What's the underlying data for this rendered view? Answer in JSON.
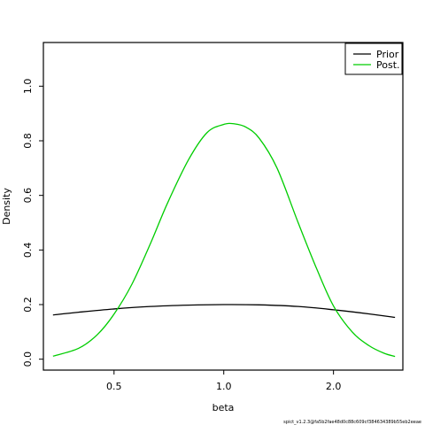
{
  "chart_data": {
    "type": "line",
    "xlabel": "beta",
    "ylabel": "Density",
    "x_scale": "log",
    "xlim": [
      0.32,
      3.1
    ],
    "ylim": [
      -0.04,
      1.16
    ],
    "x_ticks": [
      0.5,
      1.0,
      2.0
    ],
    "x_tick_labels": [
      "0.5",
      "1.0",
      "2.0"
    ],
    "y_ticks": [
      0.0,
      0.2,
      0.4,
      0.6,
      0.8,
      1.0
    ],
    "y_tick_labels": [
      "0.0",
      "0.2",
      "0.4",
      "0.6",
      "0.8",
      "1.0"
    ],
    "grid": false,
    "legend_position": "top-right",
    "series": [
      {
        "name": "Prior",
        "color": "#000000",
        "x": [
          0.34,
          0.4,
          0.5,
          0.63,
          0.8,
          1.0,
          1.25,
          1.6,
          2.0,
          2.5,
          2.95
        ],
        "y": [
          0.162,
          0.172,
          0.184,
          0.193,
          0.198,
          0.2,
          0.199,
          0.193,
          0.181,
          0.166,
          0.153
        ]
      },
      {
        "name": "Post.",
        "color": "#00cd00",
        "x": [
          0.34,
          0.4,
          0.45,
          0.5,
          0.56,
          0.63,
          0.7,
          0.8,
          0.9,
          1.0,
          1.07,
          1.15,
          1.25,
          1.4,
          1.6,
          1.8,
          2.0,
          2.25,
          2.5,
          2.75,
          2.95
        ],
        "y": [
          0.011,
          0.04,
          0.09,
          0.165,
          0.275,
          0.425,
          0.57,
          0.73,
          0.83,
          0.86,
          0.862,
          0.85,
          0.81,
          0.7,
          0.5,
          0.33,
          0.195,
          0.1,
          0.05,
          0.022,
          0.01
        ]
      }
    ]
  },
  "footer": "spict_v1.2.3@fa5b2fae48d0c88c609cf384634389b55eb2eeae"
}
